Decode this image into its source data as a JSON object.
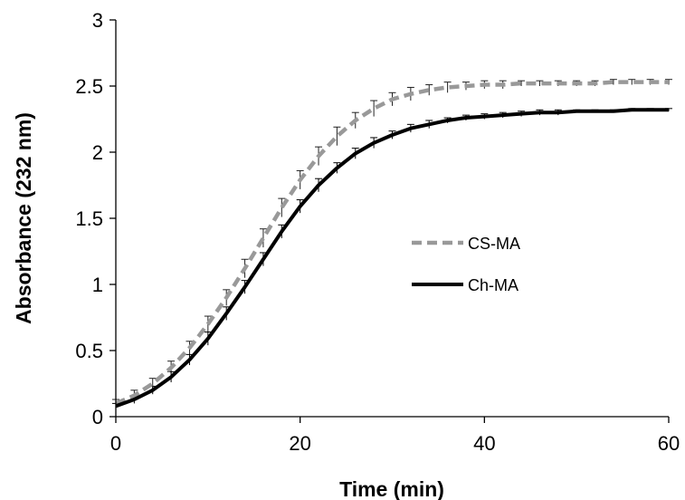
{
  "chart_data": {
    "type": "line",
    "title": "",
    "xlabel": "Time (min)",
    "ylabel": "Absorbance (232 nm)",
    "xlim": [
      0,
      60
    ],
    "ylim": [
      0,
      3
    ],
    "x_ticks": [
      "0",
      "20",
      "40",
      "60"
    ],
    "y_ticks": [
      "0",
      "0.5",
      "1",
      "1.5",
      "2",
      "2.5",
      "3"
    ],
    "grid": false,
    "legend_position": "right-center",
    "series": [
      {
        "name": "CS-MA",
        "color": "#999999",
        "style": "dashed",
        "x": [
          0,
          2,
          4,
          6,
          8,
          10,
          12,
          14,
          16,
          18,
          20,
          22,
          24,
          26,
          28,
          30,
          32,
          34,
          36,
          38,
          40,
          42,
          44,
          46,
          48,
          50,
          52,
          54,
          56,
          58,
          60
        ],
        "y": [
          0.1,
          0.16,
          0.25,
          0.37,
          0.52,
          0.7,
          0.9,
          1.12,
          1.35,
          1.58,
          1.79,
          1.97,
          2.12,
          2.24,
          2.33,
          2.4,
          2.44,
          2.47,
          2.49,
          2.5,
          2.51,
          2.51,
          2.52,
          2.52,
          2.52,
          2.52,
          2.52,
          2.53,
          2.53,
          2.53,
          2.53
        ],
        "error": [
          0.03,
          0.04,
          0.04,
          0.05,
          0.05,
          0.06,
          0.06,
          0.07,
          0.07,
          0.07,
          0.07,
          0.07,
          0.07,
          0.06,
          0.06,
          0.05,
          0.05,
          0.04,
          0.04,
          0.03,
          0.03,
          0.03,
          0.02,
          0.02,
          0.02,
          0.02,
          0.02,
          0.02,
          0.02,
          0.02,
          0.02
        ]
      },
      {
        "name": "Ch-MA",
        "color": "#000000",
        "style": "solid",
        "x": [
          0,
          2,
          4,
          6,
          8,
          10,
          12,
          14,
          16,
          18,
          20,
          22,
          24,
          26,
          28,
          30,
          32,
          34,
          36,
          38,
          40,
          42,
          44,
          46,
          48,
          50,
          52,
          54,
          56,
          58,
          60
        ],
        "y": [
          0.08,
          0.13,
          0.2,
          0.3,
          0.43,
          0.59,
          0.78,
          0.98,
          1.19,
          1.4,
          1.59,
          1.75,
          1.88,
          1.99,
          2.07,
          2.13,
          2.18,
          2.21,
          2.24,
          2.26,
          2.27,
          2.28,
          2.29,
          2.3,
          2.3,
          2.31,
          2.31,
          2.31,
          2.32,
          2.32,
          2.32
        ],
        "error": [
          0.02,
          0.03,
          0.03,
          0.04,
          0.04,
          0.05,
          0.05,
          0.05,
          0.05,
          0.05,
          0.05,
          0.05,
          0.04,
          0.04,
          0.04,
          0.03,
          0.03,
          0.03,
          0.02,
          0.02,
          0.02,
          0.02,
          0.02,
          0.02,
          0.02,
          0.01,
          0.01,
          0.01,
          0.01,
          0.01,
          0.01
        ]
      }
    ]
  }
}
